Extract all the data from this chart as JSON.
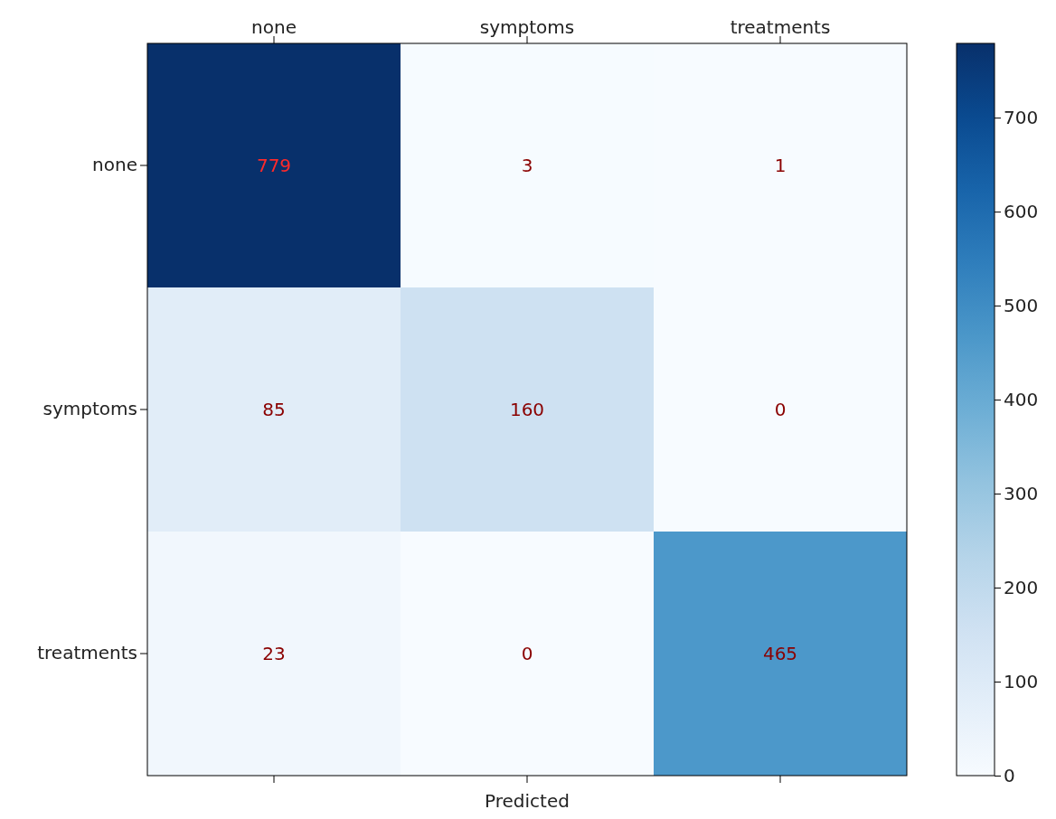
{
  "chart_data": {
    "type": "heatmap",
    "xlabel": "Predicted",
    "categories": [
      "none",
      "symptoms",
      "treatments"
    ],
    "y_categories": [
      "none",
      "symptoms",
      "treatments"
    ],
    "cells": [
      [
        779,
        3,
        1
      ],
      [
        85,
        160,
        0
      ],
      [
        23,
        0,
        465
      ]
    ],
    "data_labels": true,
    "clim": [
      0,
      779
    ],
    "cticks": [
      0,
      100,
      200,
      300,
      400,
      500,
      600,
      700
    ]
  }
}
